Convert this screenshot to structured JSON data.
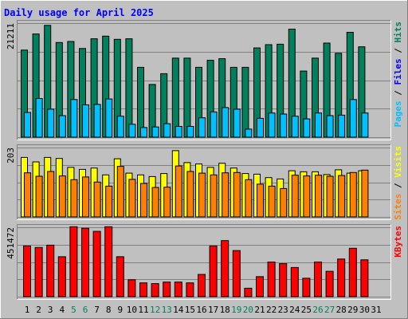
{
  "title": "Daily usage for April 2025",
  "chart_data": [
    {
      "type": "bar",
      "panel": "hits-files-pages",
      "categories": [
        "1",
        "2",
        "3",
        "4",
        "5",
        "6",
        "7",
        "8",
        "9",
        "10",
        "11",
        "12",
        "13",
        "14",
        "15",
        "16",
        "17",
        "18",
        "19",
        "20",
        "21",
        "22",
        "23",
        "24",
        "25",
        "26",
        "27",
        "28",
        "29",
        "30",
        "31"
      ],
      "y_tick_label": "21211",
      "ylim": [
        0,
        21211
      ],
      "legend": [
        "Pages",
        "Files",
        "Hits"
      ],
      "colors": {
        "Hits": "#00805c",
        "Files": "#0000ff",
        "Pages": "#00c0ff"
      },
      "series": [
        {
          "name": "Hits",
          "values": [
            16200,
            19200,
            20800,
            17600,
            17800,
            16500,
            18300,
            18800,
            18200,
            18300,
            13000,
            9800,
            11800,
            14700,
            14700,
            13000,
            14300,
            14600,
            13000,
            13000,
            16600,
            17200,
            17300,
            20100,
            12300,
            14700,
            17500,
            15600,
            19500,
            16800,
            0
          ]
        },
        {
          "name": "Pages",
          "values": [
            4600,
            7200,
            5200,
            4000,
            7000,
            6000,
            6100,
            7100,
            3900,
            2400,
            1800,
            1900,
            2500,
            2000,
            2000,
            3600,
            4700,
            5500,
            5200,
            1500,
            3500,
            4500,
            4300,
            3900,
            3400,
            4500,
            4000,
            4100,
            7000,
            4500,
            0
          ]
        }
      ]
    },
    {
      "type": "bar",
      "panel": "visits-sites",
      "categories": [
        "1",
        "2",
        "3",
        "4",
        "5",
        "6",
        "7",
        "8",
        "9",
        "10",
        "11",
        "12",
        "13",
        "14",
        "15",
        "16",
        "17",
        "18",
        "19",
        "20",
        "21",
        "22",
        "23",
        "24",
        "25",
        "26",
        "27",
        "28",
        "29",
        "30",
        "31"
      ],
      "y_tick_label": "203",
      "ylim": [
        0,
        203
      ],
      "legend": [
        "Sites",
        "Visits"
      ],
      "colors": {
        "Visits": "#ffff00",
        "Sites": "#ff8000"
      },
      "series": [
        {
          "name": "Visits",
          "values": [
            174,
            161,
            174,
            171,
            145,
            139,
            143,
            123,
            170,
            128,
            123,
            118,
            127,
            194,
            159,
            155,
            145,
            157,
            143,
            127,
            125,
            115,
            111,
            135,
            132,
            132,
            124,
            138,
            128,
            135,
            0
          ]
        },
        {
          "name": "Sites",
          "values": [
            129,
            119,
            133,
            120,
            109,
            117,
            102,
            90,
            148,
            110,
            98,
            86,
            87,
            149,
            133,
            128,
            123,
            129,
            130,
            109,
            96,
            90,
            83,
            122,
            120,
            122,
            119,
            121,
            130,
            137,
            0
          ]
        }
      ]
    },
    {
      "type": "bar",
      "panel": "kbytes",
      "categories": [
        "1",
        "2",
        "3",
        "4",
        "5",
        "6",
        "7",
        "8",
        "9",
        "10",
        "11",
        "12",
        "13",
        "14",
        "15",
        "16",
        "17",
        "18",
        "19",
        "20",
        "21",
        "22",
        "23",
        "24",
        "25",
        "26",
        "27",
        "28",
        "29",
        "30",
        "31"
      ],
      "y_tick_label": "451472",
      "ylim": [
        0,
        451472
      ],
      "legend": [
        "KBytes"
      ],
      "colors": {
        "KBytes": "#ff0000"
      },
      "series": [
        {
          "name": "KBytes",
          "values": [
            330000,
            320000,
            335000,
            260000,
            455000,
            445000,
            425000,
            455000,
            260000,
            110000,
            90000,
            85000,
            95000,
            95000,
            90000,
            145000,
            330000,
            365000,
            300000,
            55000,
            130000,
            225000,
            215000,
            190000,
            120000,
            225000,
            165000,
            245000,
            315000,
            240000,
            0
          ]
        }
      ]
    }
  ]
}
